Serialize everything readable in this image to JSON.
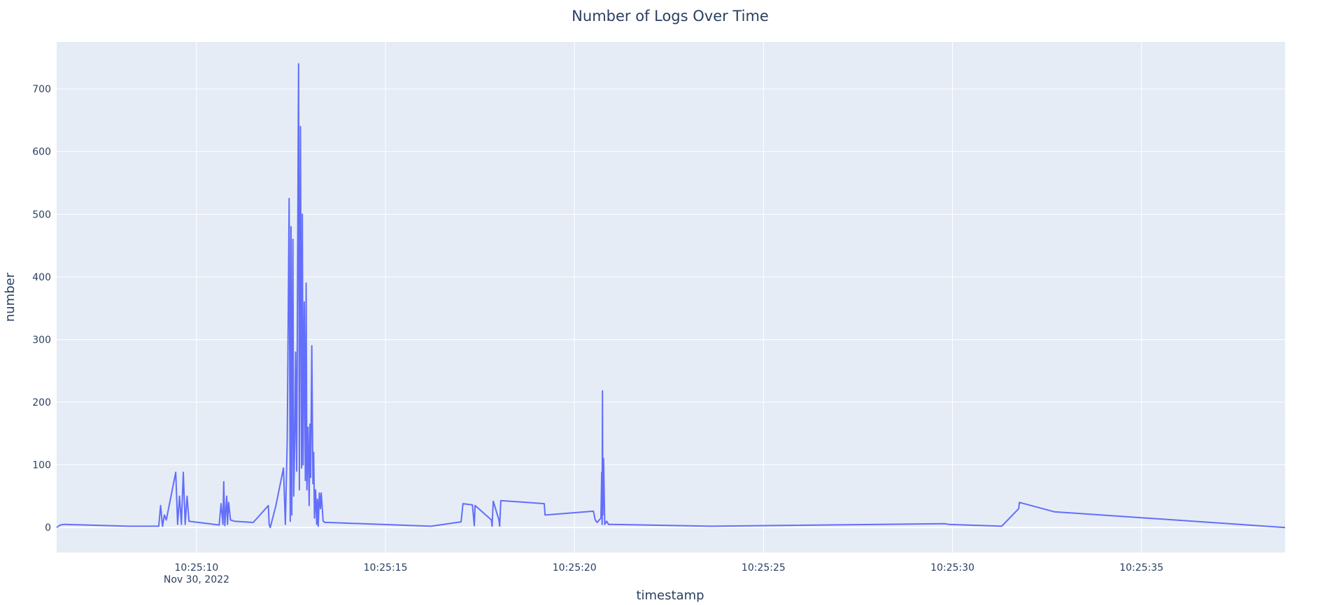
{
  "chart_data": {
    "type": "line",
    "title": "Number of Logs Over Time",
    "xlabel": "timestamp",
    "ylabel": "number",
    "x_date_label": "Nov 30, 2022",
    "xlim": [
      "10:25:06.3",
      "10:25:38.8"
    ],
    "ylim": [
      -40,
      775
    ],
    "x_ticks": [
      "10:25:10",
      "10:25:15",
      "10:25:20",
      "10:25:25",
      "10:25:30",
      "10:25:35"
    ],
    "y_ticks": [
      0,
      100,
      200,
      300,
      400,
      500,
      600,
      700
    ],
    "grid": true,
    "line_color": "#636efa",
    "plot_bg": "#e5ecf6",
    "series": [
      {
        "x": [
          "10:25:06.3",
          "10:25:06.4",
          "10:25:06.5",
          "10:25:08.2",
          "10:25:09.0",
          "10:25:09.05",
          "10:25:09.1",
          "10:25:09.15",
          "10:25:09.2",
          "10:25:09.45",
          "10:25:09.5",
          "10:25:09.55",
          "10:25:09.6",
          "10:25:09.65",
          "10:25:09.7",
          "10:25:09.75",
          "10:25:09.8",
          "10:25:10.6",
          "10:25:10.65",
          "10:25:10.7",
          "10:25:10.72",
          "10:25:10.75",
          "10:25:10.8",
          "10:25:10.82",
          "10:25:10.85",
          "10:25:10.9",
          "10:25:11.0",
          "10:25:11.5",
          "10:25:11.9",
          "10:25:11.92",
          "10:25:11.95",
          "10:25:12.1",
          "10:25:12.3",
          "10:25:12.35",
          "10:25:12.4",
          "10:25:12.45",
          "10:25:12.48",
          "10:25:12.5",
          "10:25:12.52",
          "10:25:12.55",
          "10:25:12.57",
          "10:25:12.6",
          "10:25:12.62",
          "10:25:12.65",
          "10:25:12.68",
          "10:25:12.7",
          "10:25:12.72",
          "10:25:12.75",
          "10:25:12.78",
          "10:25:12.8",
          "10:25:12.82",
          "10:25:12.85",
          "10:25:12.88",
          "10:25:12.9",
          "10:25:12.92",
          "10:25:12.95",
          "10:25:12.98",
          "10:25:13.0",
          "10:25:13.02",
          "10:25:13.05",
          "10:25:13.08",
          "10:25:13.1",
          "10:25:13.12",
          "10:25:13.15",
          "10:25:13.18",
          "10:25:13.2",
          "10:25:13.22",
          "10:25:13.25",
          "10:25:13.28",
          "10:25:13.3",
          "10:25:13.35",
          "10:25:13.4",
          "10:25:13.45",
          "10:25:13.5",
          "10:25:16.2",
          "10:25:17.0",
          "10:25:17.05",
          "10:25:17.3",
          "10:25:17.35",
          "10:25:17.37",
          "10:25:17.8",
          "10:25:17.82",
          "10:25:17.85",
          "10:25:18.0",
          "10:25:18.02",
          "10:25:18.05",
          "10:25:19.2",
          "10:25:19.22",
          "10:25:19.25",
          "10:25:20.5",
          "10:25:20.55",
          "10:25:20.6",
          "10:25:20.7",
          "10:25:20.72",
          "10:25:20.73",
          "10:25:20.74",
          "10:25:20.75",
          "10:25:20.77",
          "10:25:20.8",
          "10:25:20.85",
          "10:25:20.9",
          "10:25:20.95",
          "10:25:23.6",
          "10:25:29.8",
          "10:25:29.9",
          "10:25:31.3",
          "10:25:31.75",
          "10:25:31.77",
          "10:25:32.7",
          "10:25:38.8"
        ],
        "y": [
          0,
          4,
          5,
          2,
          2,
          35,
          2,
          20,
          12,
          88,
          5,
          50,
          5,
          88,
          5,
          50,
          10,
          4,
          38,
          5,
          73,
          3,
          50,
          5,
          40,
          12,
          10,
          8,
          35,
          5,
          0,
          35,
          95,
          5,
          140,
          525,
          10,
          480,
          20,
          460,
          50,
          140,
          280,
          90,
          490,
          740,
          60,
          640,
          95,
          500,
          100,
          360,
          75,
          390,
          60,
          160,
          35,
          165,
          80,
          290,
          70,
          120,
          15,
          60,
          5,
          45,
          2,
          55,
          30,
          55,
          10,
          8,
          8,
          8,
          2,
          9,
          38,
          36,
          3,
          35,
          12,
          2,
          42,
          12,
          2,
          43,
          38,
          20,
          20,
          26,
          12,
          8,
          15,
          88,
          5,
          218,
          20,
          110,
          5,
          10,
          5,
          5,
          2,
          6,
          5,
          2,
          30,
          40,
          25,
          0
        ]
      }
    ]
  }
}
